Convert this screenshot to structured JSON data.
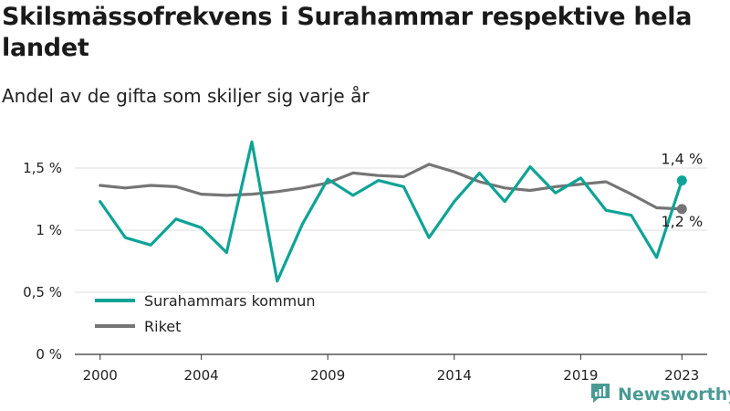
{
  "header": {
    "title": "Skilsmässofrekvens i Surahammar respektive hela landet",
    "subtitle": "Andel av de gifta som skiljer sig varje år"
  },
  "brand": {
    "name": "Newsworthy",
    "icon": "newsworthy-logo-icon"
  },
  "colors": {
    "surahammar": "#0fa396",
    "riket": "#757575",
    "grid": "#dddddd",
    "axis": "#333333"
  },
  "chart_data": {
    "type": "line",
    "title": "Skilsmässofrekvens i Surahammar respektive hela landet",
    "subtitle": "Andel av de gifta som skiljer sig varje år",
    "x_ticks": [
      2000,
      2004,
      2009,
      2014,
      2019,
      2023
    ],
    "x_tick_labels": [
      "2000",
      "2004",
      "2009",
      "2014",
      "2019",
      "2023"
    ],
    "y_ticks": [
      0,
      0.5,
      1,
      1.5
    ],
    "y_tick_labels": [
      "0 %",
      "0,5 %",
      "1 %",
      "1,5 %"
    ],
    "xlim": [
      1999,
      2024
    ],
    "ylim": [
      0,
      1.75
    ],
    "grid": "horizontal",
    "legend_position": "bottom-left",
    "x": [
      2000,
      2001,
      2002,
      2003,
      2004,
      2005,
      2006,
      2007,
      2008,
      2009,
      2010,
      2011,
      2012,
      2013,
      2014,
      2015,
      2016,
      2017,
      2018,
      2019,
      2020,
      2021,
      2022,
      2023
    ],
    "series": [
      {
        "name": "Surahammars kommun",
        "color": "#0fa396",
        "end_label": "1,4 %",
        "values": [
          1.23,
          0.94,
          0.88,
          1.09,
          1.02,
          0.82,
          1.71,
          0.59,
          1.05,
          1.41,
          1.28,
          1.4,
          1.35,
          0.94,
          1.23,
          1.46,
          1.23,
          1.51,
          1.3,
          1.42,
          1.16,
          1.12,
          0.78,
          1.4
        ]
      },
      {
        "name": "Riket",
        "color": "#757575",
        "end_label": "1,2 %",
        "values": [
          1.36,
          1.34,
          1.36,
          1.35,
          1.29,
          1.28,
          1.29,
          1.31,
          1.34,
          1.38,
          1.46,
          1.44,
          1.43,
          1.53,
          1.47,
          1.39,
          1.34,
          1.32,
          1.35,
          1.37,
          1.39,
          1.29,
          1.18,
          1.17
        ]
      }
    ]
  }
}
